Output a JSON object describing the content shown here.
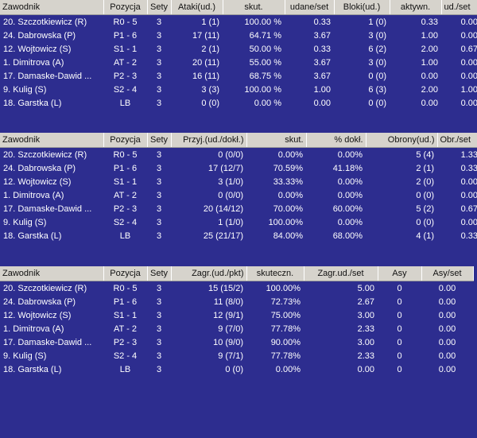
{
  "tables": [
    {
      "columns": [
        "Zawodnik",
        "Pozycja",
        "Sety",
        "Atakі(ud.)",
        "skut.",
        "udane/set",
        "Bloki(ud.)",
        "aktywn.",
        "ud./set"
      ],
      "rows": [
        [
          "20. Szczotkiewicz (R)",
          "R0 - 5",
          "3",
          "1 (1)",
          "100.00 %",
          "0.33",
          "1 (0)",
          "0.33",
          "0.00"
        ],
        [
          "24. Dabrowska (P)",
          "P1 - 6",
          "3",
          "17 (11)",
          "64.71 %",
          "3.67",
          "3 (0)",
          "1.00",
          "0.00"
        ],
        [
          "12. Wojtowicz (S)",
          "S1 - 1",
          "3",
          "2 (1)",
          "50.00 %",
          "0.33",
          "6 (2)",
          "2.00",
          "0.67"
        ],
        [
          "1. Dimitrova (A)",
          "AT - 2",
          "3",
          "20 (11)",
          "55.00 %",
          "3.67",
          "3 (0)",
          "1.00",
          "0.00"
        ],
        [
          "17. Damaske-Dawid ...",
          "P2 - 3",
          "3",
          "16 (11)",
          "68.75 %",
          "3.67",
          "0 (0)",
          "0.00",
          "0.00"
        ],
        [
          "9. Kulig (S)",
          "S2 - 4",
          "3",
          "3 (3)",
          "100.00 %",
          "1.00",
          "6 (3)",
          "2.00",
          "1.00"
        ],
        [
          "18. Garstka (L)",
          "LB",
          "3",
          "0 (0)",
          "0.00 %",
          "0.00",
          "0 (0)",
          "0.00",
          "0.00"
        ]
      ]
    },
    {
      "columns": [
        "Zawodnik",
        "Pozycja",
        "Sety",
        "Przyj.(ud./dokł.)",
        "skut.",
        "% dokł.",
        "Obrony(ud.)",
        "Obr./set"
      ],
      "rows": [
        [
          "20. Szczotkiewicz (R)",
          "R0 - 5",
          "3",
          "0 (0/0)",
          "0.00%",
          "0.00%",
          "5 (4)",
          "1.33"
        ],
        [
          "24. Dabrowska (P)",
          "P1 - 6",
          "3",
          "17 (12/7)",
          "70.59%",
          "41.18%",
          "2 (1)",
          "0.33"
        ],
        [
          "12. Wojtowicz (S)",
          "S1 - 1",
          "3",
          "3 (1/0)",
          "33.33%",
          "0.00%",
          "2 (0)",
          "0.00"
        ],
        [
          "1. Dimitrova (A)",
          "AT - 2",
          "3",
          "0 (0/0)",
          "0.00%",
          "0.00%",
          "0 (0)",
          "0.00"
        ],
        [
          "17. Damaske-Dawid ...",
          "P2 - 3",
          "3",
          "20 (14/12)",
          "70.00%",
          "60.00%",
          "5 (2)",
          "0.67"
        ],
        [
          "9. Kulig (S)",
          "S2 - 4",
          "3",
          "1 (1/0)",
          "100.00%",
          "0.00%",
          "0 (0)",
          "0.00"
        ],
        [
          "18. Garstka (L)",
          "LB",
          "3",
          "25 (21/17)",
          "84.00%",
          "68.00%",
          "4 (1)",
          "0.33"
        ]
      ]
    },
    {
      "columns": [
        "Zawodnik",
        "Pozycja",
        "Sety",
        "Zagr.(ud./pkt)",
        "skuteczn.",
        "Zagr.ud./set",
        "Asy",
        "Asy/set"
      ],
      "rows": [
        [
          "20. Szczotkiewicz (R)",
          "R0 - 5",
          "3",
          "15 (15/2)",
          "100.00%",
          "5.00",
          "0",
          "0.00"
        ],
        [
          "24. Dabrowska (P)",
          "P1 - 6",
          "3",
          "11 (8/0)",
          "72.73%",
          "2.67",
          "0",
          "0.00"
        ],
        [
          "12. Wojtowicz (S)",
          "S1 - 1",
          "3",
          "12 (9/1)",
          "75.00%",
          "3.00",
          "0",
          "0.00"
        ],
        [
          "1. Dimitrova (A)",
          "AT - 2",
          "3",
          "9 (7/0)",
          "77.78%",
          "2.33",
          "0",
          "0.00"
        ],
        [
          "17. Damaske-Dawid ...",
          "P2 - 3",
          "3",
          "10 (9/0)",
          "90.00%",
          "3.00",
          "0",
          "0.00"
        ],
        [
          "9. Kulig (S)",
          "S2 - 4",
          "3",
          "9 (7/1)",
          "77.78%",
          "2.33",
          "0",
          "0.00"
        ],
        [
          "18. Garstka (L)",
          "LB",
          "3",
          "0 (0)",
          "0.00%",
          "0.00",
          "0",
          "0.00"
        ]
      ]
    }
  ]
}
